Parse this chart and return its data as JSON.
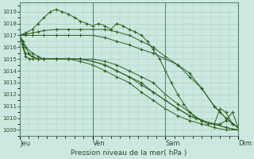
{
  "background_color": "#cce8e0",
  "plot_bg_color": "#cce8e0",
  "grid_color": "#aaccc4",
  "line_color": "#2d6020",
  "marker_color": "#2d6020",
  "xlabel": "Pression niveau de la mer( hPa )",
  "ylim": [
    1008.5,
    1019.8
  ],
  "yticks": [
    1009,
    1010,
    1011,
    1012,
    1013,
    1014,
    1015,
    1016,
    1017,
    1018,
    1019
  ],
  "xtick_labels": [
    "Jeu",
    "Ven",
    "Sam",
    "Dim"
  ],
  "series": [
    {
      "x": [
        0.0,
        0.08,
        0.17,
        0.25,
        0.33,
        0.42,
        0.5,
        0.58,
        0.67,
        0.75,
        0.83,
        0.92,
        1.0,
        1.08,
        1.17,
        1.25,
        1.33,
        1.42,
        1.5,
        1.58,
        1.67,
        1.75,
        1.83,
        1.92,
        2.0,
        2.08,
        2.17,
        2.25,
        2.33,
        2.42,
        2.5,
        2.58,
        2.67,
        2.75,
        2.83,
        2.92,
        3.0
      ],
      "y": [
        1017.0,
        1017.2,
        1017.5,
        1018.0,
        1018.5,
        1019.0,
        1019.2,
        1019.0,
        1018.8,
        1018.5,
        1018.2,
        1018.0,
        1017.8,
        1018.0,
        1017.8,
        1017.5,
        1018.0,
        1017.8,
        1017.5,
        1017.3,
        1017.0,
        1016.5,
        1015.8,
        1015.0,
        1014.0,
        1013.0,
        1012.0,
        1011.2,
        1010.5,
        1010.0,
        1009.8,
        1009.5,
        1009.5,
        1010.8,
        1010.5,
        1009.5,
        1009.2
      ]
    },
    {
      "x": [
        0.0,
        0.08,
        0.17,
        0.25,
        0.33,
        0.5,
        0.67,
        0.83,
        1.0,
        1.17,
        1.33,
        1.5,
        1.67,
        1.83,
        2.0,
        2.17,
        2.33,
        2.5,
        2.67,
        2.83,
        3.0
      ],
      "y": [
        1017.0,
        1017.1,
        1017.2,
        1017.3,
        1017.4,
        1017.5,
        1017.5,
        1017.5,
        1017.5,
        1017.5,
        1017.3,
        1017.0,
        1016.5,
        1016.0,
        1015.2,
        1014.5,
        1013.5,
        1012.5,
        1011.0,
        1010.0,
        1009.2
      ]
    },
    {
      "x": [
        0.0,
        0.08,
        0.17,
        0.33,
        0.5,
        0.67,
        0.83,
        1.0,
        1.17,
        1.33,
        1.5,
        1.67,
        1.83,
        2.0,
        2.17,
        2.33,
        2.5,
        2.67,
        2.75,
        2.83,
        2.92,
        3.0
      ],
      "y": [
        1017.0,
        1017.0,
        1017.0,
        1017.0,
        1017.0,
        1017.0,
        1017.0,
        1017.0,
        1016.8,
        1016.5,
        1016.2,
        1015.8,
        1015.5,
        1015.0,
        1014.5,
        1013.8,
        1012.5,
        1011.0,
        1010.5,
        1010.0,
        1009.5,
        1009.2
      ]
    },
    {
      "x": [
        0.0,
        0.04,
        0.08,
        0.17,
        0.25,
        0.33,
        0.5,
        0.67,
        0.83,
        1.0,
        1.17,
        1.33,
        1.5,
        1.67,
        1.83,
        2.0,
        2.17,
        2.33,
        2.5,
        2.67,
        2.75,
        2.83,
        2.92,
        3.0
      ],
      "y": [
        1017.0,
        1016.5,
        1016.0,
        1015.5,
        1015.2,
        1015.0,
        1015.0,
        1015.0,
        1015.0,
        1015.0,
        1014.8,
        1014.5,
        1014.0,
        1013.5,
        1013.0,
        1012.0,
        1011.2,
        1010.5,
        1009.8,
        1009.5,
        1009.5,
        1009.8,
        1010.5,
        1009.2
      ]
    },
    {
      "x": [
        0.0,
        0.04,
        0.08,
        0.12,
        0.17,
        0.25,
        0.33,
        0.5,
        0.67,
        0.83,
        1.0,
        1.17,
        1.33,
        1.5,
        1.67,
        1.83,
        2.0,
        2.17,
        2.33,
        2.5,
        2.67,
        2.83,
        3.0
      ],
      "y": [
        1017.0,
        1016.5,
        1016.0,
        1015.5,
        1015.2,
        1015.0,
        1015.0,
        1015.0,
        1015.0,
        1015.0,
        1014.8,
        1014.5,
        1014.0,
        1013.5,
        1012.8,
        1012.2,
        1011.5,
        1010.8,
        1010.2,
        1009.8,
        1009.5,
        1009.2,
        1009.0
      ]
    },
    {
      "x": [
        0.0,
        0.04,
        0.08,
        0.17,
        0.25,
        0.33,
        0.5,
        0.67,
        0.83,
        1.0,
        1.17,
        1.33,
        1.5,
        1.67,
        1.83,
        2.0,
        2.17,
        2.33,
        2.5,
        2.67,
        2.83,
        3.0
      ],
      "y": [
        1017.0,
        1016.2,
        1015.5,
        1015.2,
        1015.0,
        1015.0,
        1015.0,
        1015.0,
        1015.0,
        1014.8,
        1014.5,
        1014.0,
        1013.5,
        1013.0,
        1012.2,
        1011.5,
        1010.8,
        1010.2,
        1009.8,
        1009.5,
        1009.2,
        1009.0
      ]
    },
    {
      "x": [
        0.0,
        0.04,
        0.08,
        0.13,
        0.17,
        0.25,
        0.33,
        0.5,
        0.67,
        0.83,
        1.0,
        1.17,
        1.33,
        1.5,
        1.67,
        1.83,
        2.0,
        2.17,
        2.33,
        2.5,
        2.67,
        2.83,
        3.0
      ],
      "y": [
        1017.0,
        1016.0,
        1015.2,
        1015.0,
        1015.0,
        1015.0,
        1015.0,
        1015.0,
        1015.0,
        1014.8,
        1014.5,
        1014.0,
        1013.5,
        1013.0,
        1012.2,
        1011.5,
        1010.8,
        1010.2,
        1009.8,
        1009.5,
        1009.2,
        1009.0,
        1009.0
      ]
    }
  ],
  "figsize": [
    3.2,
    2.0
  ],
  "dpi": 100
}
